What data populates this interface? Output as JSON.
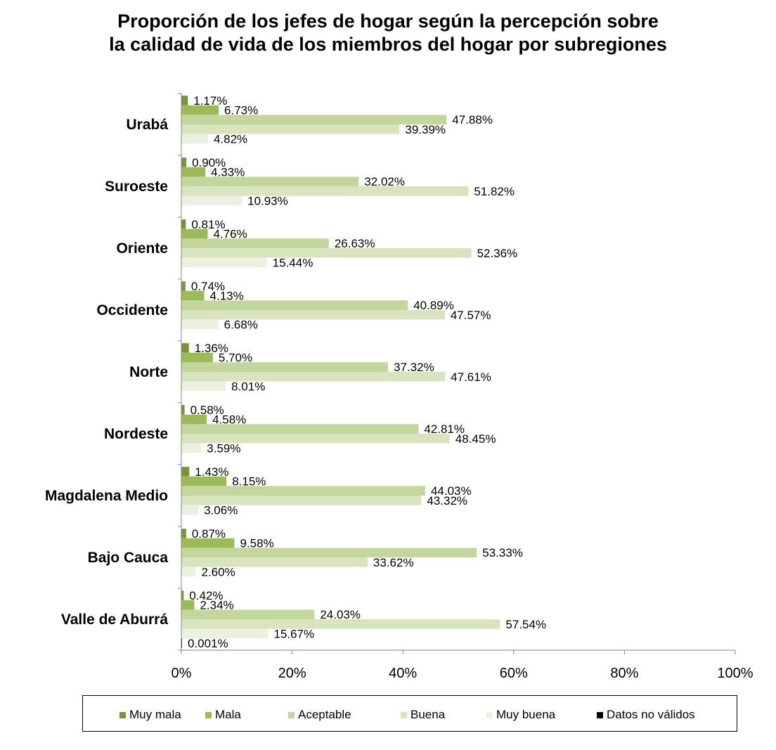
{
  "title_lines": [
    "Proporción de los jefes de hogar  según la percepción sobre",
    "la calidad de vida de los miembros del hogar por subregiones"
  ],
  "chart_data": {
    "type": "bar",
    "orientation": "horizontal",
    "categories": [
      "Urabá",
      "Suroeste",
      "Oriente",
      "Occidente",
      "Norte",
      "Nordeste",
      "Magdalena Medio",
      "Bajo Cauca",
      "Valle de Aburrá"
    ],
    "series": [
      {
        "name": "Muy mala",
        "color": "#77933C",
        "values": [
          1.17,
          0.9,
          0.81,
          0.74,
          1.36,
          0.58,
          1.43,
          0.87,
          0.42
        ],
        "labels": [
          "1.17%",
          "0.90%",
          "0.81%",
          "0.74%",
          "1.36%",
          "0.58%",
          "1.43%",
          "0.87%",
          "0.42%"
        ]
      },
      {
        "name": "Mala",
        "color": "#9BBB59",
        "values": [
          6.73,
          4.33,
          4.76,
          4.13,
          5.7,
          4.58,
          8.15,
          9.58,
          2.34
        ],
        "labels": [
          "6.73%",
          "4.33%",
          "4.76%",
          "4.13%",
          "5.70%",
          "4.58%",
          "8.15%",
          "9.58%",
          "2.34%"
        ]
      },
      {
        "name": "Aceptable",
        "color": "#C3D69B",
        "values": [
          47.88,
          32.02,
          26.63,
          40.89,
          37.32,
          42.81,
          44.03,
          53.33,
          24.03
        ],
        "labels": [
          "47.88%",
          "32.02%",
          "26.63%",
          "40.89%",
          "37.32%",
          "42.81%",
          "44.03%",
          "53.33%",
          "24.03%"
        ]
      },
      {
        "name": "Buena",
        "color": "#D7E4BD",
        "values": [
          39.39,
          51.82,
          52.36,
          47.57,
          47.61,
          48.45,
          43.32,
          33.62,
          57.54
        ],
        "labels": [
          "39.39%",
          "51.82%",
          "52.36%",
          "47.57%",
          "47.61%",
          "48.45%",
          "43.32%",
          "33.62%",
          "57.54%"
        ]
      },
      {
        "name": "Muy buena",
        "color": "#EBF1DE",
        "values": [
          4.82,
          10.93,
          15.44,
          6.68,
          8.01,
          3.59,
          3.06,
          2.6,
          15.67
        ],
        "labels": [
          "4.82%",
          "10.93%",
          "15.44%",
          "6.68%",
          "8.01%",
          "3.59%",
          "3.06%",
          "2.60%",
          "15.67%"
        ]
      },
      {
        "name": "Datos no válidos",
        "color": "#000000",
        "values": [
          null,
          null,
          null,
          null,
          null,
          null,
          null,
          null,
          0.001
        ],
        "labels": [
          "",
          "",
          "",
          "",
          "",
          "",
          "",
          "",
          "0.001%"
        ]
      }
    ],
    "x_ticks": [
      "0%",
      "20%",
      "40%",
      "60%",
      "80%",
      "100%"
    ],
    "xlim": [
      0,
      100
    ],
    "legend_position": "bottom",
    "grid": false
  }
}
